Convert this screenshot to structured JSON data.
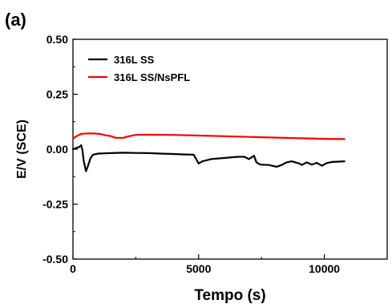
{
  "chart_data": {
    "type": "line",
    "panel_label": "(a)",
    "xlabel": "Tempo (s)",
    "ylabel": "E/V (SCE)",
    "xlim": [
      0,
      12500
    ],
    "ylim": [
      -0.5,
      0.5
    ],
    "x_ticks": [
      0,
      5000,
      10000
    ],
    "x_tick_labels": [
      "0",
      "5000",
      "10000"
    ],
    "y_ticks": [
      0.5,
      0.25,
      0.0,
      -0.25,
      -0.5
    ],
    "y_tick_labels": [
      "0.50",
      "0.25",
      "0.00",
      "-0.25",
      "-0.50"
    ],
    "legend_position": "top-left",
    "series": [
      {
        "name": "316L SS",
        "color": "#000000",
        "points": [
          [
            0,
            0.0
          ],
          [
            120,
            0.005
          ],
          [
            250,
            0.01
          ],
          [
            330,
            0.018
          ],
          [
            380,
            -0.005
          ],
          [
            430,
            -0.055
          ],
          [
            520,
            -0.1
          ],
          [
            600,
            -0.075
          ],
          [
            700,
            -0.04
          ],
          [
            800,
            -0.025
          ],
          [
            1000,
            -0.02
          ],
          [
            1500,
            -0.018
          ],
          [
            2000,
            -0.016
          ],
          [
            2500,
            -0.017
          ],
          [
            3000,
            -0.018
          ],
          [
            3500,
            -0.02
          ],
          [
            4000,
            -0.022
          ],
          [
            4500,
            -0.024
          ],
          [
            4800,
            -0.025
          ],
          [
            4880,
            -0.04
          ],
          [
            5000,
            -0.065
          ],
          [
            5150,
            -0.055
          ],
          [
            5500,
            -0.045
          ],
          [
            6000,
            -0.04
          ],
          [
            6500,
            -0.035
          ],
          [
            6800,
            -0.034
          ],
          [
            7000,
            -0.045
          ],
          [
            7200,
            -0.03
          ],
          [
            7300,
            -0.06
          ],
          [
            7450,
            -0.07
          ],
          [
            7800,
            -0.072
          ],
          [
            8100,
            -0.08
          ],
          [
            8300,
            -0.072
          ],
          [
            8500,
            -0.06
          ],
          [
            8700,
            -0.055
          ],
          [
            9000,
            -0.065
          ],
          [
            9100,
            -0.072
          ],
          [
            9300,
            -0.06
          ],
          [
            9500,
            -0.07
          ],
          [
            9700,
            -0.062
          ],
          [
            9900,
            -0.075
          ],
          [
            10100,
            -0.063
          ],
          [
            10300,
            -0.058
          ],
          [
            10500,
            -0.057
          ],
          [
            10800,
            -0.055
          ]
        ]
      },
      {
        "name": "316L SS/NsPFL",
        "color": "#ff0000",
        "points": [
          [
            0,
            0.048
          ],
          [
            120,
            0.058
          ],
          [
            220,
            0.064
          ],
          [
            350,
            0.07
          ],
          [
            600,
            0.072
          ],
          [
            900,
            0.071
          ],
          [
            1100,
            0.069
          ],
          [
            1300,
            0.063
          ],
          [
            1500,
            0.06
          ],
          [
            1700,
            0.052
          ],
          [
            2000,
            0.052
          ],
          [
            2200,
            0.058
          ],
          [
            2500,
            0.065
          ],
          [
            3000,
            0.066
          ],
          [
            4000,
            0.065
          ],
          [
            5000,
            0.062
          ],
          [
            6000,
            0.059
          ],
          [
            7000,
            0.056
          ],
          [
            8000,
            0.053
          ],
          [
            9000,
            0.05
          ],
          [
            10000,
            0.047
          ],
          [
            10800,
            0.046
          ]
        ]
      }
    ]
  }
}
